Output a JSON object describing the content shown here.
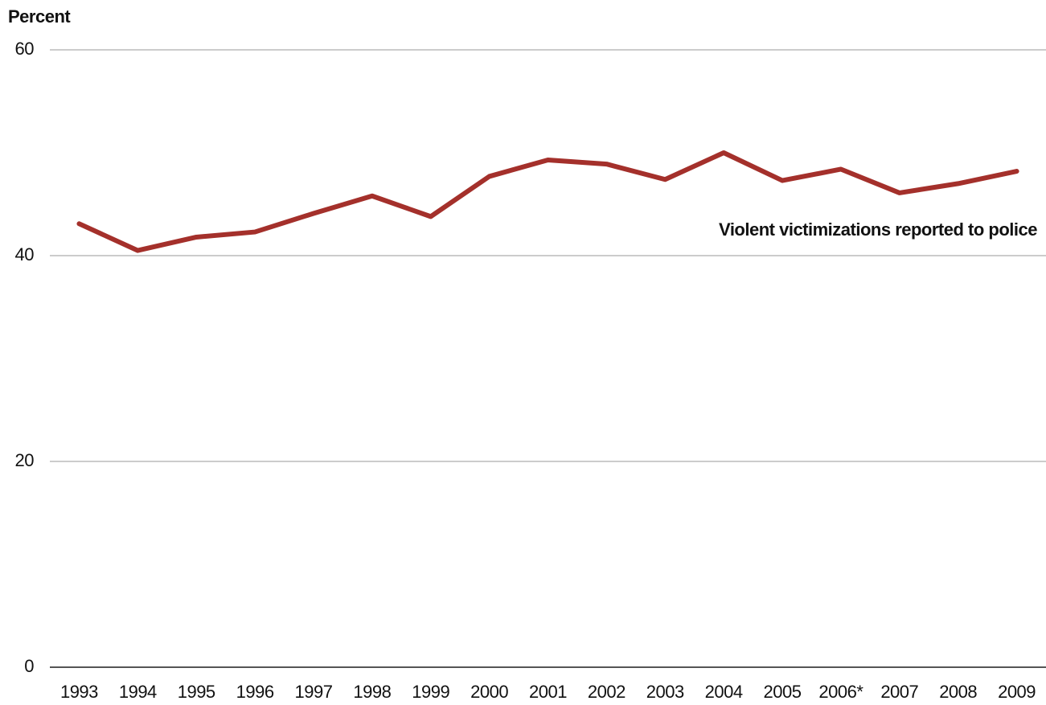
{
  "chart_data": {
    "type": "line",
    "y_label": "Percent",
    "categories": [
      "1993",
      "1994",
      "1995",
      "1996",
      "1997",
      "1998",
      "1999",
      "2000",
      "2001",
      "2002",
      "2003",
      "2004",
      "2005",
      "2006*",
      "2007",
      "2008",
      "2009"
    ],
    "series": [
      {
        "name": "Violent victimizations reported to police",
        "color": "#a4302b",
        "values": [
          43.1,
          40.5,
          41.8,
          42.3,
          44.1,
          45.8,
          43.8,
          47.7,
          49.3,
          48.9,
          47.4,
          50.0,
          47.3,
          48.4,
          46.1,
          47.0,
          48.2
        ]
      }
    ],
    "ylim": [
      0,
      60
    ],
    "yticks": [
      0,
      20,
      40,
      60
    ],
    "grid": true
  }
}
